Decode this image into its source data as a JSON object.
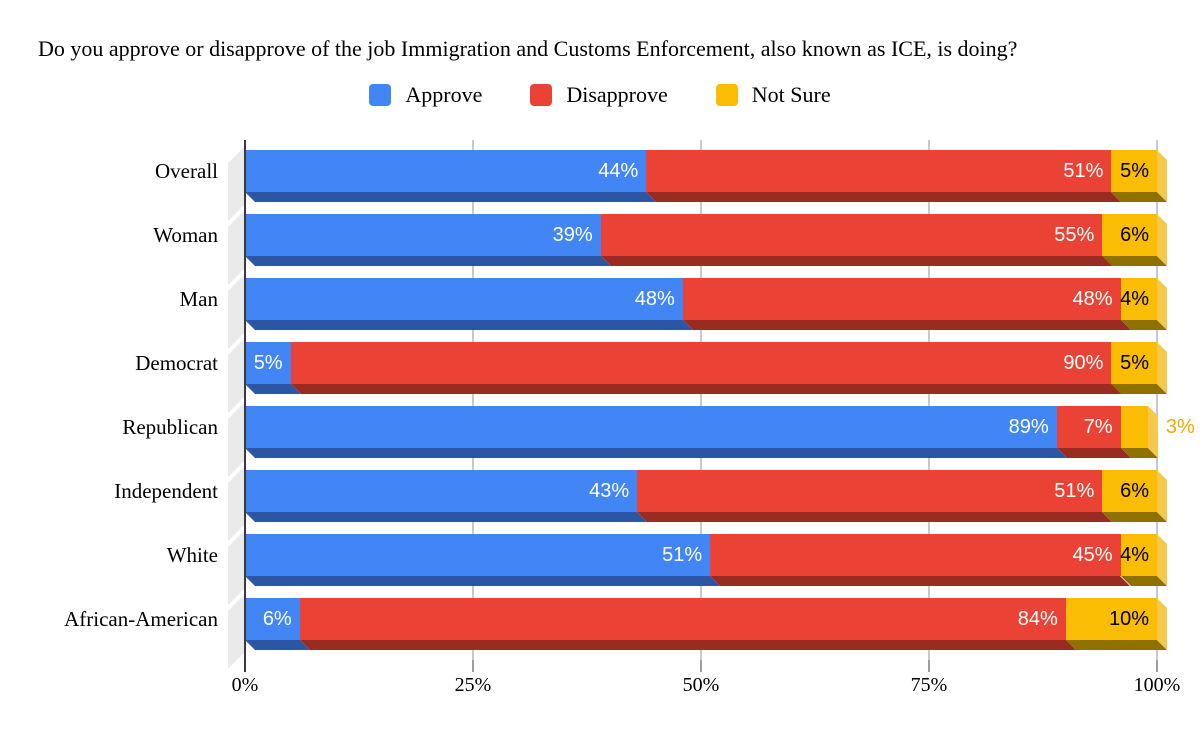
{
  "title": "Do you approve or disapprove of the job Immigration and Customs Enforcement, also known as ICE, is doing?",
  "legend": {
    "items": [
      {
        "label": "Approve"
      },
      {
        "label": "Disapprove"
      },
      {
        "label": "Not Sure"
      }
    ]
  },
  "colors": {
    "background": "#FFFFFF",
    "wall": "#EAEAEA",
    "gridline": "#C9C9C9",
    "axis_line": "#3B3B3B",
    "tick": "#9E9E9E"
  },
  "chart_data": {
    "type": "bar",
    "orientation": "horizontal",
    "stacked": true,
    "effect_3d": true,
    "title": "Do you approve or disapprove of the job Immigration and Customs Enforcement, also known as ICE, is doing?",
    "legend_position": "top",
    "grid": true,
    "categories": [
      "Overall",
      "Woman",
      "Man",
      "Democrat",
      "Republican",
      "Independent",
      "White",
      "African-American"
    ],
    "series": [
      {
        "name": "Approve",
        "color": "#4285F4",
        "depth_color": "#2C56A4",
        "label_color": "#FFFFFF",
        "values": [
          44,
          39,
          48,
          5,
          89,
          43,
          51,
          6
        ]
      },
      {
        "name": "Disapprove",
        "color": "#EA4335",
        "depth_color": "#9A2B22",
        "label_color": "#FFFFFF",
        "values": [
          51,
          55,
          48,
          90,
          7,
          51,
          45,
          84
        ]
      },
      {
        "name": "Not Sure",
        "color": "#FBBC04",
        "depth_color": "#8F7100",
        "side_color": "#F6C84C",
        "label_color": "#000000",
        "outside_label_color": "#F2A60A",
        "values": [
          5,
          6,
          4,
          5,
          3,
          6,
          4,
          10
        ]
      }
    ],
    "value_suffix": "%",
    "x_axis": {
      "tick_labels": [
        "0%",
        "25%",
        "50%",
        "75%",
        "100%"
      ],
      "range": [
        0,
        100
      ]
    }
  }
}
